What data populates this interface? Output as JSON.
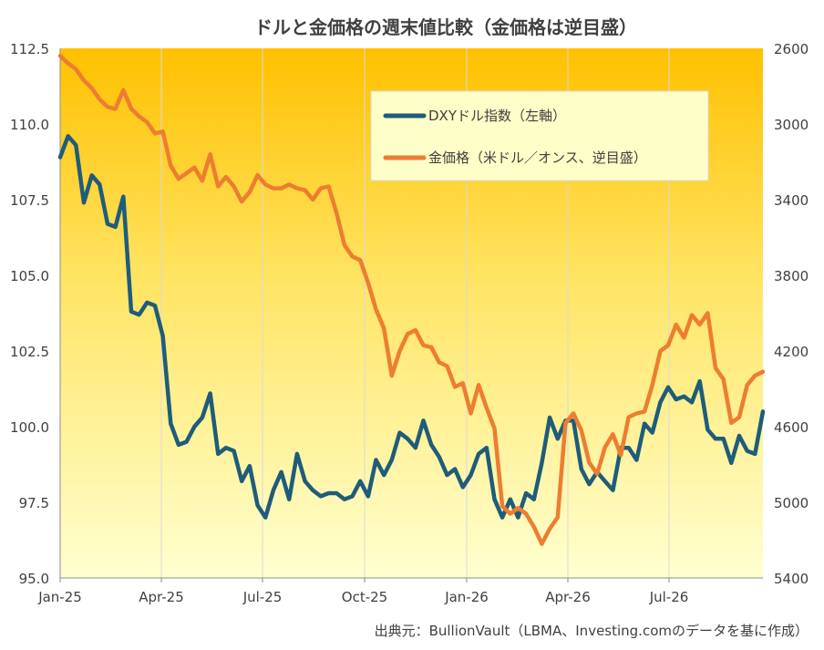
{
  "chart_data": {
    "type": "line",
    "title": "ドルと金価格の週末値比較（金価格は逆目盛）",
    "source": "出典元：BullionVault（LBMA、Investing.comのデータを基に作成）",
    "x_ticks": [
      "Jan-25",
      "Apr-25",
      "Jul-25",
      "Oct-25",
      "Jan-26",
      "Apr-26",
      "Jul-26"
    ],
    "y_left": {
      "range": [
        95.0,
        112.5
      ],
      "ticks": [
        "112.5",
        "110.0",
        "107.5",
        "105.0",
        "102.5",
        "100.0",
        "97.5",
        "95.0"
      ]
    },
    "y_right": {
      "range": [
        2600,
        5400
      ],
      "reversed": true,
      "ticks": [
        "2600",
        "3000",
        "3400",
        "3800",
        "4200",
        "4600",
        "5000",
        "5400"
      ]
    },
    "series": [
      {
        "name": "DXYドル指数（左軸）",
        "axis": "left",
        "color": "#1f5c7a",
        "values": [
          108.9,
          109.6,
          109.3,
          107.4,
          108.3,
          108.0,
          106.7,
          106.6,
          107.6,
          103.8,
          103.7,
          104.1,
          104.0,
          103.0,
          100.1,
          99.4,
          99.5,
          100.0,
          100.3,
          101.1,
          99.1,
          99.3,
          99.2,
          98.2,
          98.7,
          97.4,
          97.0,
          97.9,
          98.5,
          97.6,
          99.1,
          98.2,
          97.9,
          97.7,
          97.8,
          97.8,
          97.6,
          97.7,
          98.2,
          97.7,
          98.9,
          98.4,
          98.9,
          99.8,
          99.6,
          99.3,
          100.2,
          99.4,
          99.0,
          98.4,
          98.6,
          98.0,
          98.4,
          99.1,
          99.3,
          97.6,
          97.0,
          97.6,
          97.0,
          97.8,
          97.6,
          98.8,
          100.3,
          99.6,
          100.2,
          100.2,
          98.6,
          98.1,
          98.5,
          98.2,
          97.9,
          99.3,
          99.3,
          98.9,
          100.1,
          99.8,
          100.8,
          101.3,
          100.9,
          101.0,
          100.8,
          101.5,
          99.9,
          99.6,
          99.6,
          98.8,
          99.7,
          99.2,
          99.1,
          100.5
        ]
      },
      {
        "name": "金価格（米ドル／オンス、逆目盛）",
        "axis": "right",
        "color": "#ed7d31",
        "values": [
          2640,
          2680,
          2710,
          2770,
          2810,
          2870,
          2910,
          2920,
          2820,
          2920,
          2960,
          2990,
          3050,
          3040,
          3220,
          3290,
          3260,
          3230,
          3300,
          3160,
          3330,
          3280,
          3330,
          3410,
          3360,
          3270,
          3320,
          3340,
          3340,
          3320,
          3340,
          3350,
          3400,
          3340,
          3330,
          3470,
          3640,
          3700,
          3720,
          3840,
          3980,
          4080,
          4330,
          4200,
          4110,
          4090,
          4170,
          4180,
          4260,
          4280,
          4390,
          4370,
          4530,
          4380,
          4500,
          4610,
          5020,
          5060,
          5030,
          5060,
          5130,
          5220,
          5140,
          5080,
          4580,
          4530,
          4620,
          4790,
          4850,
          4710,
          4640,
          4750,
          4550,
          4530,
          4520,
          4380,
          4200,
          4170,
          4060,
          4130,
          4010,
          4060,
          4000,
          4290,
          4350,
          4580,
          4550,
          4380,
          4330,
          4310
        ]
      }
    ],
    "legend": {
      "placement": "top-right",
      "entries": [
        "DXYドル指数（左軸）",
        "金価格（米ドル／オンス、逆目盛）"
      ]
    },
    "grid": {
      "vertical": true,
      "horizontal": false
    },
    "colors": {
      "background_top": "#ffc000",
      "background_bottom": "#ffffd0",
      "legend_bg": "#fefec8"
    }
  }
}
